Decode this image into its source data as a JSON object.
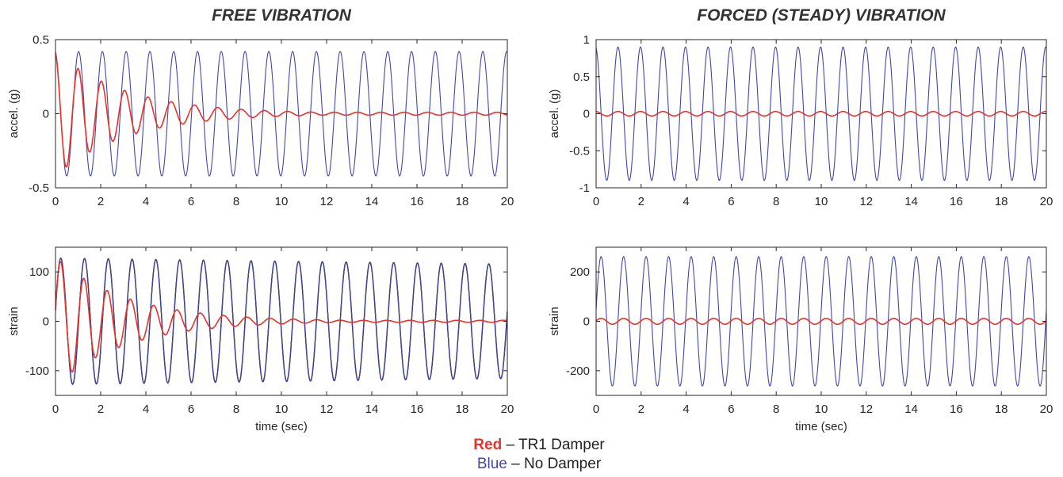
{
  "titles": {
    "left": "FREE VIBRATION",
    "right": "FORCED (STEADY) VIBRATION"
  },
  "legend": {
    "red_key": "Red",
    "red_text": " – TR1 Damper",
    "blue_key": "Blue",
    "blue_text": " – No Damper"
  },
  "colors": {
    "red": "#e8322b",
    "blue": "#4348a0",
    "black_overlay": "#000000"
  },
  "chart_data": [
    {
      "type": "line",
      "panel": "free-accel",
      "title": "FREE VIBRATION",
      "xlabel": "",
      "ylabel": "accel. (g)",
      "xlim": [
        0,
        20
      ],
      "ylim": [
        -0.5,
        0.5
      ],
      "xticks": [
        0,
        2,
        4,
        6,
        8,
        10,
        12,
        14,
        16,
        18,
        20
      ],
      "yticks": [
        -0.5,
        0,
        0.5
      ],
      "series": [
        {
          "color": "blue",
          "kind": "sine",
          "amplitude": 0.42,
          "frequency_hz": 0.95,
          "phase_deg": 100,
          "decay_per_sec": 0
        },
        {
          "color": "red",
          "kind": "damped-sine",
          "amplitude": 0.42,
          "frequency_hz": 0.97,
          "phase_deg": 100,
          "decay_per_sec": 0.32,
          "floor_amplitude": 0.01
        }
      ]
    },
    {
      "type": "line",
      "panel": "forced-accel",
      "title": "FORCED (STEADY) VIBRATION",
      "xlabel": "",
      "ylabel": "accel. (g)",
      "xlim": [
        0,
        20
      ],
      "ylim": [
        -1,
        1
      ],
      "xticks": [
        0,
        2,
        4,
        6,
        8,
        10,
        12,
        14,
        16,
        18,
        20
      ],
      "yticks": [
        -1,
        -0.5,
        0,
        0.5,
        1
      ],
      "series": [
        {
          "color": "blue",
          "kind": "sine",
          "amplitude": 0.9,
          "frequency_hz": 1.0,
          "phase_deg": 100,
          "decay_per_sec": 0
        },
        {
          "color": "red",
          "kind": "sine",
          "amplitude": 0.03,
          "frequency_hz": 1.0,
          "phase_deg": 100,
          "decay_per_sec": 0
        }
      ]
    },
    {
      "type": "line",
      "panel": "free-strain",
      "title": "",
      "xlabel": "time (sec)",
      "ylabel": "strain",
      "xlim": [
        0,
        20
      ],
      "ylim": [
        -150,
        150
      ],
      "xticks": [
        0,
        2,
        4,
        6,
        8,
        10,
        12,
        14,
        16,
        18,
        20
      ],
      "yticks": [
        -100,
        0,
        100
      ],
      "series": [
        {
          "color": "black_overlay",
          "kind": "sine",
          "amplitude": 128,
          "frequency_hz": 0.95,
          "phase_deg": 10,
          "decay_per_sec": 0.005
        },
        {
          "color": "blue",
          "kind": "sine",
          "amplitude": 128,
          "frequency_hz": 0.95,
          "phase_deg": 10,
          "decay_per_sec": 0.005
        },
        {
          "color": "red",
          "kind": "damped-sine",
          "amplitude": 130,
          "frequency_hz": 0.97,
          "phase_deg": 10,
          "decay_per_sec": 0.32,
          "floor_amplitude": 2
        }
      ]
    },
    {
      "type": "line",
      "panel": "forced-strain",
      "title": "",
      "xlabel": "time (sec)",
      "ylabel": "strain",
      "xlim": [
        0,
        20
      ],
      "ylim": [
        -300,
        300
      ],
      "xticks": [
        0,
        2,
        4,
        6,
        8,
        10,
        12,
        14,
        16,
        18,
        20
      ],
      "yticks": [
        -200,
        0,
        200
      ],
      "series": [
        {
          "color": "blue",
          "kind": "sine",
          "amplitude": 262,
          "frequency_hz": 1.0,
          "phase_deg": 10,
          "decay_per_sec": 0
        },
        {
          "color": "red",
          "kind": "sine",
          "amplitude": 12,
          "frequency_hz": 1.0,
          "phase_deg": 10,
          "decay_per_sec": 0
        }
      ]
    }
  ]
}
